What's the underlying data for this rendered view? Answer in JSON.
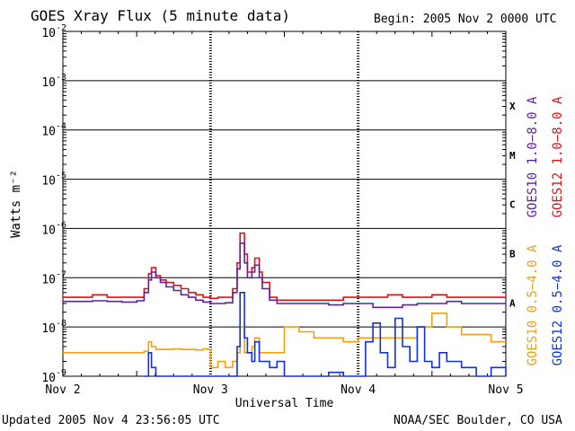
{
  "header": {
    "title": "GOES Xray Flux (5 minute data)",
    "begin": "Begin:  2005 Nov 2 0000 UTC"
  },
  "footer": {
    "updated": "Updated 2005 Nov  4 23:56:05 UTC",
    "source": "NOAA/SEC Boulder, CO USA"
  },
  "chart_data": {
    "type": "line",
    "title": "GOES Xray Flux (5 minute data)",
    "xlabel": "Universal Time",
    "ylabel": "Watts m⁻²",
    "yscale": "log",
    "xlim": [
      0,
      3
    ],
    "ylim": [
      1e-09,
      0.01
    ],
    "grid": "horizontal lines at each decade",
    "x_ticks": [
      "Nov 2",
      "Nov 3",
      "Nov 4",
      "Nov 5"
    ],
    "y_ticks": [
      {
        "base": "10",
        "exp": "-2",
        "value": 0.01
      },
      {
        "base": "10",
        "exp": "-3",
        "value": 0.001
      },
      {
        "base": "10",
        "exp": "-4",
        "value": 0.0001
      },
      {
        "base": "10",
        "exp": "-5",
        "value": 1e-05
      },
      {
        "base": "10",
        "exp": "-6",
        "value": 1e-06
      },
      {
        "base": "10",
        "exp": "-7",
        "value": 1e-07
      },
      {
        "base": "10",
        "exp": "-8",
        "value": 1e-08
      },
      {
        "base": "10",
        "exp": "-9",
        "value": 1e-09
      }
    ],
    "flare_classes": [
      {
        "label": "X",
        "value": 0.00032
      },
      {
        "label": "M",
        "value": 3.2e-05
      },
      {
        "label": "C",
        "value": 3.2e-06
      },
      {
        "label": "B",
        "value": 3.2e-07
      },
      {
        "label": "A",
        "value": 3.2e-08
      }
    ],
    "legend_placement": "right, vertical",
    "legend": [
      {
        "text": "GOES10 1.0−8.0 A",
        "color": "#6020a0"
      },
      {
        "text": "GOES12 1.0−8.0 A",
        "color": "#e0101a"
      },
      {
        "text": "GOES10 0.5−4.0 A",
        "color": "#f0a010"
      },
      {
        "text": "GOES12 0.5−4.0 A",
        "color": "#1030e0"
      }
    ],
    "series": [
      {
        "name": "GOES12 1.0−8.0 A",
        "color": "#e0101a",
        "x": [
          0.0,
          0.1,
          0.2,
          0.3,
          0.4,
          0.5,
          0.55,
          0.58,
          0.6,
          0.63,
          0.66,
          0.7,
          0.75,
          0.8,
          0.85,
          0.9,
          0.95,
          1.0,
          1.05,
          1.1,
          1.15,
          1.18,
          1.2,
          1.23,
          1.25,
          1.28,
          1.3,
          1.33,
          1.35,
          1.4,
          1.45,
          1.5,
          1.6,
          1.7,
          1.8,
          1.9,
          2.0,
          2.1,
          2.2,
          2.3,
          2.4,
          2.5,
          2.6,
          2.7,
          2.8,
          2.9,
          3.0
        ],
        "y": [
          4e-08,
          4e-08,
          4.5e-08,
          4e-08,
          4e-08,
          4e-08,
          6e-08,
          1.2e-07,
          1.6e-07,
          1.1e-07,
          9e-08,
          8e-08,
          7e-08,
          6e-08,
          5e-08,
          4.5e-08,
          4e-08,
          3.8e-08,
          4e-08,
          4e-08,
          6e-08,
          2e-07,
          8e-07,
          3e-07,
          1.3e-07,
          1.6e-07,
          2.5e-07,
          1.3e-07,
          8e-08,
          4e-08,
          3.5e-08,
          3.5e-08,
          3.5e-08,
          3.5e-08,
          3.5e-08,
          4e-08,
          4e-08,
          4e-08,
          4.5e-08,
          4e-08,
          4e-08,
          4.5e-08,
          4e-08,
          4e-08,
          4e-08,
          4e-08,
          4e-08
        ]
      },
      {
        "name": "GOES10 1.0−8.0 A",
        "color": "#6020a0",
        "x": [
          0.0,
          0.1,
          0.2,
          0.3,
          0.4,
          0.5,
          0.55,
          0.58,
          0.6,
          0.63,
          0.66,
          0.7,
          0.75,
          0.8,
          0.85,
          0.9,
          0.95,
          1.0,
          1.05,
          1.1,
          1.15,
          1.18,
          1.2,
          1.23,
          1.25,
          1.28,
          1.3,
          1.33,
          1.35,
          1.4,
          1.45,
          1.5,
          1.6,
          1.7,
          1.8,
          1.9,
          2.0,
          2.1,
          2.2,
          2.3,
          2.4,
          2.5,
          2.6,
          2.7,
          2.8,
          2.9,
          3.0
        ],
        "y": [
          3.3e-08,
          3.3e-08,
          3.4e-08,
          3.3e-08,
          3.2e-08,
          3.4e-08,
          5e-08,
          9e-08,
          1.3e-07,
          1e-07,
          8e-08,
          6.5e-08,
          5.5e-08,
          4.5e-08,
          4e-08,
          3.5e-08,
          3.2e-08,
          3e-08,
          3e-08,
          3.1e-08,
          5e-08,
          1.5e-07,
          5e-07,
          2e-07,
          1e-07,
          1.3e-07,
          1.8e-07,
          1e-07,
          6e-08,
          3.5e-08,
          3e-08,
          3e-08,
          3e-08,
          3e-08,
          2.8e-08,
          3e-08,
          3e-08,
          2.5e-08,
          2.5e-08,
          2.8e-08,
          3e-08,
          3e-08,
          3.3e-08,
          3e-08,
          3e-08,
          3e-08,
          3e-08
        ]
      },
      {
        "name": "GOES10 0.5−4.0 A",
        "color": "#f0a010",
        "x": [
          0.0,
          0.1,
          0.2,
          0.3,
          0.4,
          0.5,
          0.55,
          0.58,
          0.6,
          0.63,
          0.66,
          0.7,
          0.75,
          0.8,
          0.85,
          0.9,
          0.95,
          0.98,
          1.0,
          1.05,
          1.1,
          1.15,
          1.18,
          1.2,
          1.23,
          1.25,
          1.28,
          1.3,
          1.33,
          1.4,
          1.5,
          1.6,
          1.7,
          1.8,
          1.9,
          2.0,
          2.1,
          2.2,
          2.3,
          2.4,
          2.5,
          2.6,
          2.7,
          2.8,
          2.9,
          3.0
        ],
        "y": [
          3e-09,
          3e-09,
          3e-09,
          3e-09,
          3e-09,
          3e-09,
          3.2e-09,
          5e-09,
          4e-09,
          3.5e-09,
          3.5e-09,
          3.5e-09,
          3.6e-09,
          3.5e-09,
          3.5e-09,
          3.4e-09,
          3.6e-09,
          3.5e-09,
          1.5e-09,
          2e-09,
          1.5e-09,
          2e-09,
          3e-09,
          1e-08,
          3e-09,
          3e-09,
          4e-09,
          6e-09,
          3e-09,
          3e-09,
          1e-08,
          8e-09,
          6e-09,
          6e-09,
          5e-09,
          6e-09,
          6e-09,
          6e-09,
          6e-09,
          1e-08,
          1.9e-08,
          1e-08,
          7e-09,
          7e-09,
          5e-09,
          5e-09
        ]
      },
      {
        "name": "GOES12 0.5−4.0 A",
        "color": "#1030e0",
        "x": [
          0.55,
          0.58,
          0.6,
          0.63,
          0.66,
          1.15,
          1.18,
          1.2,
          1.23,
          1.25,
          1.28,
          1.3,
          1.33,
          1.4,
          1.45,
          1.5,
          1.55,
          1.6,
          1.65,
          1.7,
          1.8,
          1.9,
          2.0,
          2.05,
          2.1,
          2.15,
          2.2,
          2.25,
          2.3,
          2.35,
          2.4,
          2.45,
          2.5,
          2.55,
          2.6,
          2.7,
          2.8,
          2.9,
          3.0
        ],
        "y": [
          1e-09,
          3e-09,
          1.5e-09,
          1e-09,
          1e-09,
          1e-09,
          4e-09,
          5e-08,
          6e-09,
          3e-09,
          2e-09,
          5e-09,
          2e-09,
          1.5e-09,
          2e-09,
          1e-09,
          1e-09,
          1e-09,
          1e-09,
          1e-09,
          1.2e-09,
          1e-09,
          1e-09,
          5e-09,
          1.2e-08,
          3e-09,
          1.5e-09,
          1.5e-08,
          4e-09,
          2e-09,
          1e-08,
          2e-09,
          1.5e-09,
          3e-09,
          2e-09,
          1.5e-09,
          1e-09,
          1.5e-09,
          1e-09
        ]
      }
    ]
  }
}
